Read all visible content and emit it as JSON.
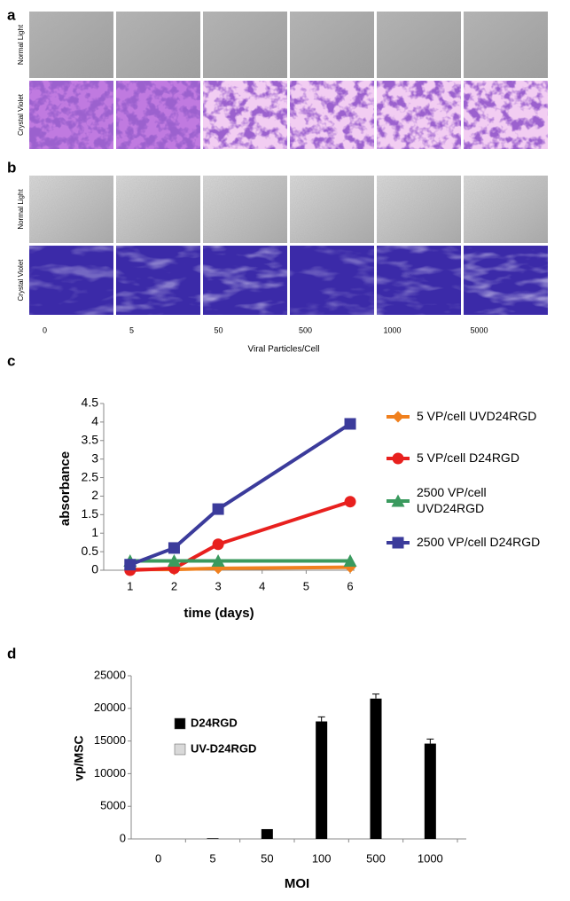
{
  "figure": {
    "panels": [
      {
        "label": "a",
        "row_labels": [
          "Normal Light",
          "Crystal Violet"
        ]
      },
      {
        "label": "b",
        "row_labels": [
          "Normal Light",
          "Crystal Violet"
        ]
      }
    ],
    "column_labels": [
      "0",
      "5",
      "50",
      "500",
      "1000",
      "5000"
    ],
    "x_axis_label": "Viral Particles/Cell"
  },
  "chart_data": [
    {
      "type": "line",
      "panel_label": "c",
      "x_label": "time (days)",
      "y_label": "absorbance",
      "x": [
        1,
        2,
        3,
        6
      ],
      "xlim": [
        0.4,
        6.1
      ],
      "xticks": [
        1,
        2,
        3,
        4,
        5,
        6
      ],
      "ylim": [
        0,
        4.5
      ],
      "yticks": [
        0,
        0.5,
        1,
        1.5,
        2,
        2.5,
        3,
        3.5,
        4,
        4.5
      ],
      "legend": "right",
      "series": [
        {
          "name": "5 VP/cell UVD24RGD",
          "color": "#f0801e",
          "marker": "diamond",
          "values": [
            0.02,
            0.02,
            0.05,
            0.08
          ]
        },
        {
          "name": "5 VP/cell D24RGD",
          "color": "#e8201e",
          "marker": "circle",
          "values": [
            0,
            0.05,
            0.7,
            1.85
          ]
        },
        {
          "name": "2500 VP/cell UVD24RGD",
          "color": "#3a9a5e",
          "marker": "triangle",
          "values": [
            0.25,
            0.25,
            0.25,
            0.25
          ]
        },
        {
          "name": "2500 VP/cell D24RGD",
          "color": "#3b3b9b",
          "marker": "square",
          "values": [
            0.15,
            0.6,
            1.65,
            3.95
          ]
        }
      ]
    },
    {
      "type": "bar",
      "panel_label": "d",
      "x_label": "MOI",
      "y_label": "vp/MSC",
      "categories": [
        "0",
        "5",
        "50",
        "100",
        "500",
        "1000"
      ],
      "ylim": [
        0,
        25000
      ],
      "yticks": [
        0,
        5000,
        10000,
        15000,
        20000,
        25000
      ],
      "legend": "upper left",
      "series": [
        {
          "name": "D24RGD",
          "color": "#000000",
          "values": [
            0,
            100,
            1500,
            18000,
            21500,
            14600
          ],
          "errors": [
            0,
            0,
            0,
            700,
            700,
            700
          ]
        },
        {
          "name": "UV-D24RGD",
          "color": "#d9d9d9",
          "values": [
            0,
            0,
            0,
            0,
            0,
            0
          ]
        }
      ]
    }
  ]
}
